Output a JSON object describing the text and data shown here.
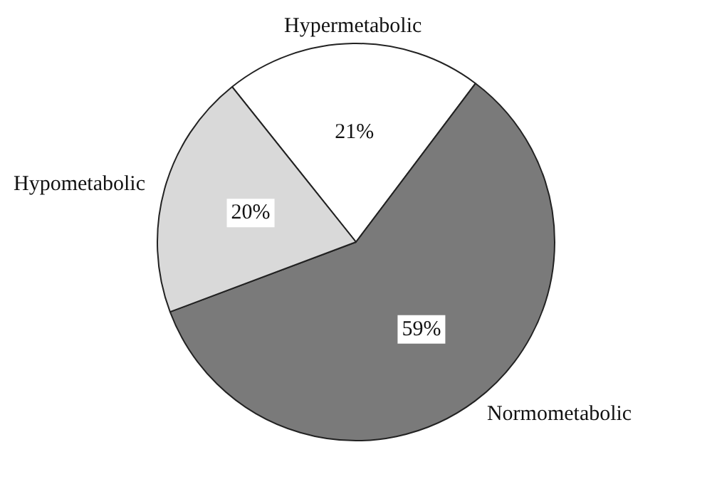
{
  "chart_data": {
    "type": "pie",
    "categories": [
      "Hypermetabolic",
      "Normometabolic",
      "Hypometabolic"
    ],
    "values": [
      21,
      59,
      20
    ],
    "colors": [
      "#ffffff",
      "#7a7a7a",
      "#d9d9d9"
    ],
    "value_labels": [
      "21%",
      "59%",
      "20%"
    ],
    "legend": false
  }
}
